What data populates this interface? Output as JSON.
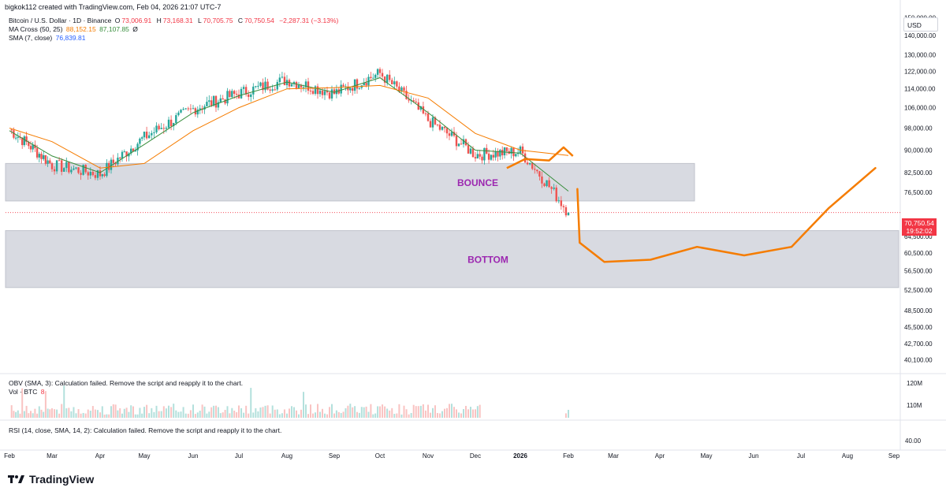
{
  "header": {
    "attribution": "bigkok112 created with TradingView.com, Feb 04, 2026 21:07 UTC-7"
  },
  "legend": {
    "symbol": "Bitcoin / U.S. Dollar · 1D · Binance",
    "open_label": "O",
    "open": "73,006.91",
    "high_label": "H",
    "high": "73,168.31",
    "low_label": "L",
    "low": "70,705.75",
    "close_label": "C",
    "close": "70,750.54",
    "change": "−2,287.31 (−3.13%)",
    "ma_cross": "MA Cross (50, 25)",
    "ma_cross_val1": "88,152.15",
    "ma_cross_val2": "87,107.85",
    "ma_cross_flag": "Ø",
    "sma": "SMA (7, close)",
    "sma_val": "76,839.81"
  },
  "obv_legend": "OBV (SMA, 3): Calculation failed. Remove the script and reapply it to the chart.",
  "vol_legend_label": "Vol · BTC",
  "vol_legend_value": "8",
  "rsi_legend": "RSI (14, close, SMA, 14, 2): Calculation failed. Remove the script and reapply it to the chart.",
  "currency_button": "USD",
  "last_price_tag": {
    "price": "70,750.54",
    "countdown": "19:52:02"
  },
  "price_axis_labels": [
    "150,000.00",
    "140,000.00",
    "130,000.00",
    "122,000.00",
    "114,000.00",
    "106,000.00",
    "98,000.00",
    "90,000.00",
    "82,500.00",
    "76,500.00",
    "64,500.00",
    "60,500.00",
    "56,500.00",
    "52,500.00",
    "48,500.00",
    "45,500.00",
    "42,700.00",
    "40,100.00"
  ],
  "volume_axis_labels": [
    "120M",
    "110M"
  ],
  "rsi_axis_labels": [
    "40.00"
  ],
  "time_axis_labels": [
    "Feb",
    "Mar",
    "Apr",
    "May",
    "Jun",
    "Jul",
    "Aug",
    "Sep",
    "Oct",
    "Nov",
    "Dec",
    "2026",
    "Feb",
    "Mar",
    "Apr",
    "May",
    "Jun",
    "Jul",
    "Aug",
    "Sep"
  ],
  "zones": [
    {
      "label": "BOUNCE",
      "top": 85500,
      "bottom": 74000
    },
    {
      "label": "BOTTOM",
      "top": 66000,
      "bottom": 53000
    }
  ],
  "brand": "TradingView",
  "colors": {
    "up": "#26a69a",
    "down": "#ef5350",
    "ma_fast": "#f57c00",
    "ma_slow": "#388e3c",
    "sma": "#2962ff",
    "zone": "#d1d4dc",
    "zone_label": "#9c27b0",
    "projection": "#f57c00"
  },
  "chart_data": {
    "type": "candlestick",
    "symbol": "Bitcoin / U.S. Dollar",
    "interval": "1D",
    "y_scale": "log",
    "ylim": [
      38500,
      152000
    ],
    "x": [
      "2025-02",
      "2025-03",
      "2025-04",
      "2025-05",
      "2025-06",
      "2025-07",
      "2025-08",
      "2025-09",
      "2025-10",
      "2025-11",
      "2025-12",
      "2026-01",
      "2026-02"
    ],
    "series": [
      {
        "name": "BTCUSD",
        "values": [
          97500,
          85000,
          82000,
          94500,
          105500,
          112000,
          118000,
          112000,
          121000,
          101000,
          88500,
          89500,
          70750
        ]
      },
      {
        "name": "SMA (7, close)",
        "values": [
          97000,
          88000,
          82500,
          92000,
          104000,
          111000,
          117000,
          112500,
          119000,
          104000,
          90000,
          89000,
          76840
        ]
      },
      {
        "name": "MA Cross (50, 25)",
        "values": [
          98000,
          93000,
          84000,
          85500,
          97000,
          106000,
          114000,
          114500,
          115500,
          110000,
          96000,
          90000,
          88152
        ]
      }
    ],
    "projection": {
      "x": [
        "2026-02",
        "2026-02",
        "2026-03",
        "2026-04",
        "2026-05",
        "2026-06",
        "2026-07",
        "2026-08",
        "2026-09"
      ],
      "values": [
        77500,
        63000,
        58500,
        59000,
        62000,
        60000,
        62000,
        72000,
        84000
      ]
    },
    "volume_max": "120M"
  }
}
